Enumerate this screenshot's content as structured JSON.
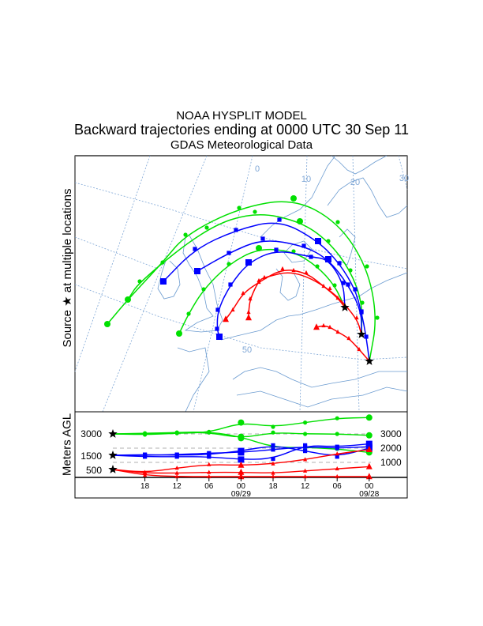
{
  "chart_data": {
    "type": "line",
    "title": "NOAA HYSPLIT MODEL",
    "subtitle": "Backward trajectories ending at 0000 UTC 30 Sep 11",
    "data_source": "GDAS Meteorological Data",
    "map_ylabel": "Source ★ at multiple locations",
    "map_grid_labels": {
      "lon": [
        "0",
        "10",
        "20",
        "30"
      ],
      "lat": [
        "50"
      ]
    },
    "ylabel": "Meters AGL",
    "left_ticks": [
      "3000",
      "1500",
      "500"
    ],
    "right_ticks": [
      "3000",
      "2000",
      "1000"
    ],
    "x_ticks": [
      "18",
      "12",
      "06",
      "00",
      "18",
      "12",
      "06",
      "00"
    ],
    "x_date_labels": [
      "09/29",
      "09/28"
    ],
    "start_heights": [
      500,
      1500,
      3000
    ],
    "ylim": [
      0,
      4500
    ],
    "hours_back": [
      0,
      6,
      12,
      18,
      24,
      30,
      36,
      42,
      48
    ],
    "series": [
      {
        "name": "green-1",
        "color": "#00e000",
        "marker": "circle",
        "values": [
          3000,
          2950,
          3050,
          3100,
          3800,
          3500,
          3800,
          4100,
          4150
        ]
      },
      {
        "name": "green-2",
        "color": "#00e000",
        "marker": "circle",
        "values": [
          3000,
          3000,
          3100,
          3100,
          2700,
          3100,
          3000,
          3000,
          2900
        ]
      },
      {
        "name": "green-3",
        "color": "#00e000",
        "marker": "circle",
        "values": [
          3000,
          3050,
          3100,
          3150,
          2800,
          2050,
          2050,
          1950,
          1700
        ]
      },
      {
        "name": "blue-1",
        "color": "#0000ff",
        "marker": "square",
        "values": [
          1500,
          1400,
          1400,
          1400,
          1200,
          1250,
          2200,
          2100,
          2300
        ]
      },
      {
        "name": "blue-2",
        "color": "#0000ff",
        "marker": "square",
        "values": [
          1500,
          1500,
          1550,
          1650,
          1700,
          1900,
          2100,
          2000,
          2100
        ]
      },
      {
        "name": "blue-3",
        "color": "#0000ff",
        "marker": "square",
        "values": [
          1500,
          1550,
          1500,
          1550,
          1800,
          2200,
          1800,
          1400,
          2000
        ]
      },
      {
        "name": "red-1",
        "color": "#ff0000",
        "marker": "triangle",
        "values": [
          500,
          300,
          600,
          850,
          800,
          900,
          1200,
          1600,
          1900
        ]
      },
      {
        "name": "red-2",
        "color": "#ff0000",
        "marker": "triangle",
        "values": [
          500,
          250,
          250,
          300,
          300,
          250,
          400,
          550,
          700
        ]
      },
      {
        "name": "red-3",
        "color": "#ff0000",
        "marker": "triangle",
        "values": [
          500,
          100,
          0,
          0,
          0,
          0,
          0,
          0,
          0
        ]
      }
    ]
  }
}
